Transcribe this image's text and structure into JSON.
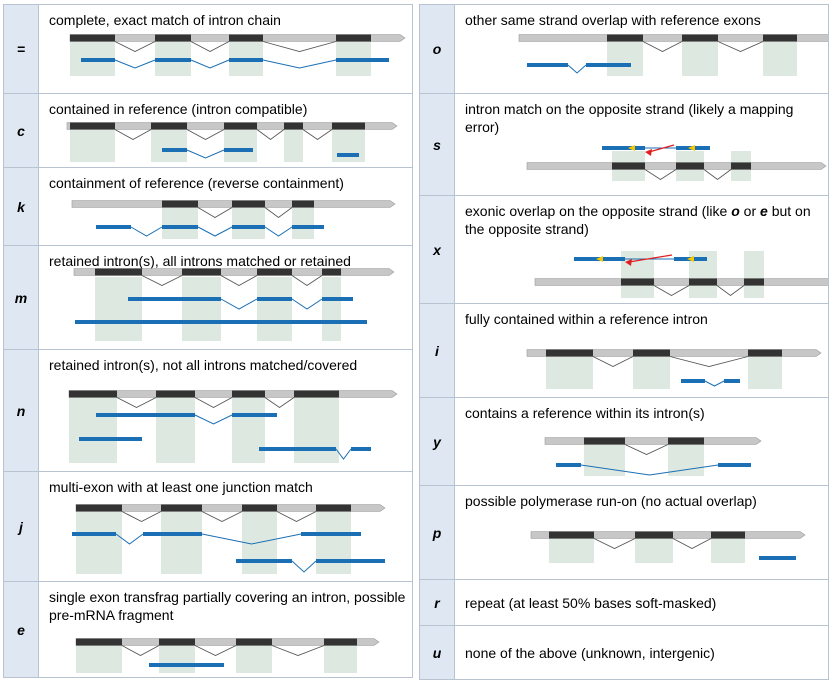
{
  "colors": {
    "reference_line": "#c7c7c7",
    "reference_exon": "#333333",
    "overlap_fill": "#dde8e0",
    "query": "#1a6fb5",
    "arrow": "#e02020",
    "marker": "#f5c800",
    "code_bg": "#dfe8f2",
    "grid_line": "#b7c3d0"
  },
  "rows": [
    {
      "code": "=",
      "desc": "complete, exact match of intron chain"
    },
    {
      "code": "c",
      "desc": "contained in reference (intron compatible)"
    },
    {
      "code": "k",
      "desc": "containment of reference (reverse containment)"
    },
    {
      "code": "m",
      "desc": "retained intron(s), all introns matched or retained"
    },
    {
      "code": "n",
      "desc": "retained intron(s), not all introns matched/covered"
    },
    {
      "code": "j",
      "desc": "multi-exon with at least one junction match"
    },
    {
      "code": "e",
      "desc": "single exon transfrag partially covering an intron, possible pre-mRNA fragment"
    },
    {
      "code": "o",
      "desc": "other same strand overlap with reference exons"
    },
    {
      "code": "s",
      "desc": "intron match on the opposite strand (likely a mapping error)"
    },
    {
      "code": "x",
      "desc": "exonic overlap on the opposite strand (like o or e but on the opposite strand)",
      "emphasis": [
        "o",
        "e"
      ]
    },
    {
      "code": "i",
      "desc": "fully contained within a reference intron"
    },
    {
      "code": "y",
      "desc": "contains a reference within its intron(s)"
    },
    {
      "code": "p",
      "desc": "possible polymerase run-on (no actual overlap)"
    },
    {
      "code": "r",
      "desc": "repeat (at least 50% bases soft-masked)"
    },
    {
      "code": "u",
      "desc": "none of the above (unknown, intergenic)"
    }
  ]
}
